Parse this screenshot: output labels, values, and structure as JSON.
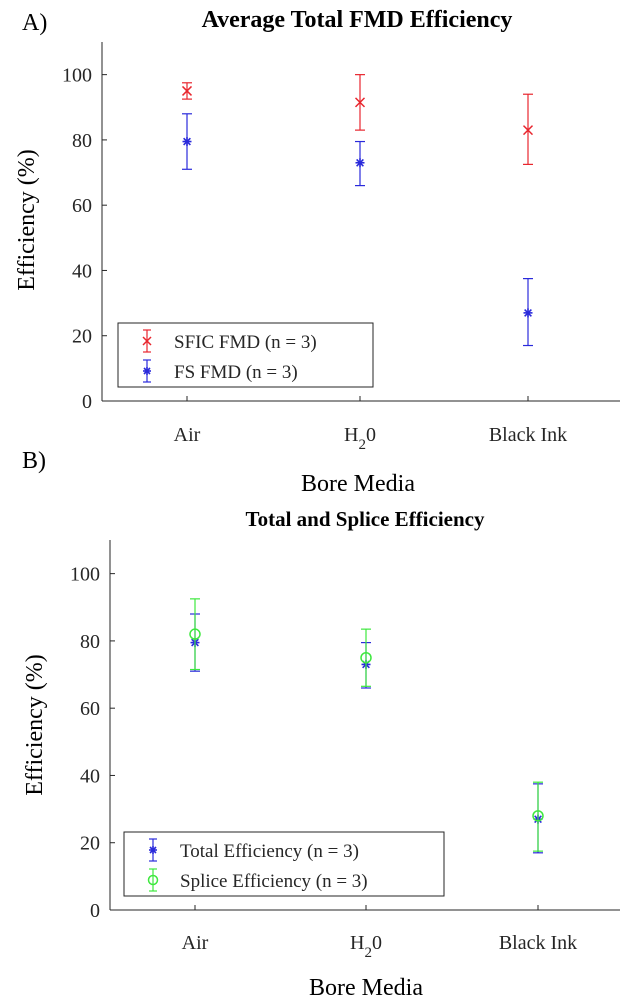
{
  "panels": [
    {
      "panel_label": "A)",
      "title": "Average Total FMD Efficiency",
      "xlabel": "Bore Media",
      "ylabel": "Efficiency (%)",
      "yticks": [
        "0",
        "20",
        "40",
        "60",
        "80",
        "100"
      ],
      "x_categories": [
        {
          "text": "Air",
          "sub": "",
          "tail": ""
        },
        {
          "text": "H",
          "sub": "2",
          "tail": "0"
        },
        {
          "text": "Black Ink",
          "sub": "",
          "tail": ""
        }
      ],
      "legend": [
        {
          "label": "SFIC FMD (n = 3)",
          "color": "#e8262e",
          "marker": "x"
        },
        {
          "label": "FS FMD (n = 3)",
          "color": "#2a2adb",
          "marker": "star"
        }
      ]
    },
    {
      "panel_label": "B)",
      "title": "Total and Splice Efficiency",
      "xlabel": "Bore Media",
      "ylabel": "Efficiency (%)",
      "yticks": [
        "0",
        "20",
        "40",
        "60",
        "80",
        "100"
      ],
      "x_categories": [
        {
          "text": "Air",
          "sub": "",
          "tail": ""
        },
        {
          "text": "H",
          "sub": "2",
          "tail": "0"
        },
        {
          "text": "Black Ink",
          "sub": "",
          "tail": ""
        }
      ],
      "legend": [
        {
          "label": "Total Efficiency (n = 3)",
          "color": "#2a2adb",
          "marker": "star"
        },
        {
          "label": "Splice Efficiency (n = 3)",
          "color": "#3ee83e",
          "marker": "circle"
        }
      ]
    }
  ],
  "chart_data": [
    {
      "type": "scatter",
      "title": "Average Total FMD Efficiency",
      "xlabel": "Bore Media",
      "ylabel": "Efficiency (%)",
      "categories": [
        "Air",
        "H20",
        "Black Ink"
      ],
      "ylim": [
        0,
        110
      ],
      "grid": false,
      "legend_position": "bottom-left",
      "series": [
        {
          "name": "SFIC FMD (n = 3)",
          "color": "#e8262e",
          "marker": "x",
          "values": [
            95,
            91.5,
            83
          ],
          "err_low": [
            92.5,
            83,
            72.5
          ],
          "err_high": [
            97.5,
            100,
            94
          ]
        },
        {
          "name": "FS FMD (n = 3)",
          "color": "#2a2adb",
          "marker": "star",
          "values": [
            79.5,
            73,
            27
          ],
          "err_low": [
            71,
            66,
            17
          ],
          "err_high": [
            88,
            79.5,
            37.5
          ]
        }
      ]
    },
    {
      "type": "scatter",
      "title": "Total and Splice Efficiency",
      "xlabel": "Bore Media",
      "ylabel": "Efficiency (%)",
      "categories": [
        "Air",
        "H20",
        "Black Ink"
      ],
      "ylim": [
        0,
        110
      ],
      "grid": false,
      "legend_position": "bottom-left",
      "series": [
        {
          "name": "Total Efficiency (n = 3)",
          "color": "#2a2adb",
          "marker": "star",
          "values": [
            79.5,
            73,
            27
          ],
          "err_low": [
            71,
            66,
            17
          ],
          "err_high": [
            88,
            79.5,
            37.5
          ]
        },
        {
          "name": "Splice Efficiency (n = 3)",
          "color": "#3ee83e",
          "marker": "circle",
          "values": [
            82,
            75,
            28
          ],
          "err_low": [
            71.5,
            66.5,
            17.5
          ],
          "err_high": [
            92.5,
            83.5,
            38
          ]
        }
      ]
    }
  ]
}
